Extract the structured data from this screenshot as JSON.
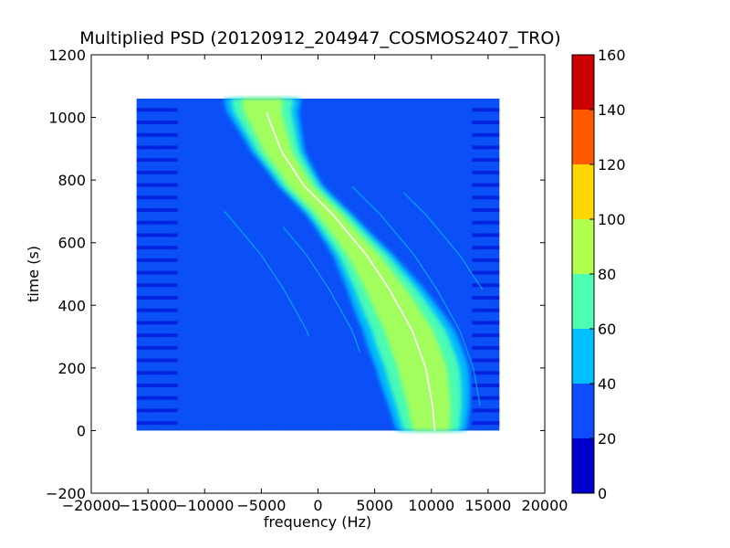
{
  "chart_data": {
    "type": "heatmap",
    "title": "Multiplied PSD (20120912_204947_COSMOS2407_TRO)",
    "xlabel": "frequency (Hz)",
    "ylabel": "time (s)",
    "xlim": [
      -20000,
      20000
    ],
    "ylim": [
      -200,
      1200
    ],
    "xticks": [
      -20000,
      -15000,
      -10000,
      -5000,
      0,
      5000,
      10000,
      15000,
      20000
    ],
    "xtick_labels": [
      "−20000",
      "−15000",
      "−10000",
      "−5000",
      "0",
      "5000",
      "10000",
      "15000",
      "20000"
    ],
    "yticks": [
      -200,
      0,
      200,
      400,
      600,
      800,
      1000,
      1200
    ],
    "ytick_labels": [
      "−200",
      "0",
      "200",
      "400",
      "600",
      "800",
      "1000",
      "1200"
    ],
    "data_extent": {
      "x": [
        -16000,
        16000
      ],
      "y": [
        0,
        1060
      ]
    },
    "background_level_color": "#0d4dff",
    "signal": {
      "description_points": [
        [
          -4900,
          1020
        ],
        [
          -3500,
          890
        ],
        [
          -1500,
          780
        ],
        [
          1000,
          690
        ],
        [
          4000,
          560
        ],
        [
          6000,
          450
        ],
        [
          8000,
          320
        ],
        [
          9200,
          200
        ],
        [
          9800,
          80
        ],
        [
          10000,
          0
        ]
      ]
    },
    "colorbar": {
      "levels": [
        0,
        20,
        40,
        60,
        80,
        100,
        120,
        140,
        160
      ],
      "tick_labels": [
        "0",
        "20",
        "40",
        "60",
        "80",
        "100",
        "120",
        "140",
        "160"
      ],
      "colors": [
        "#0000cc",
        "#0d4dff",
        "#00bfff",
        "#4dffb2",
        "#b2ff4d",
        "#ffd700",
        "#ff5a00",
        "#cc0000"
      ]
    },
    "grid": false
  }
}
